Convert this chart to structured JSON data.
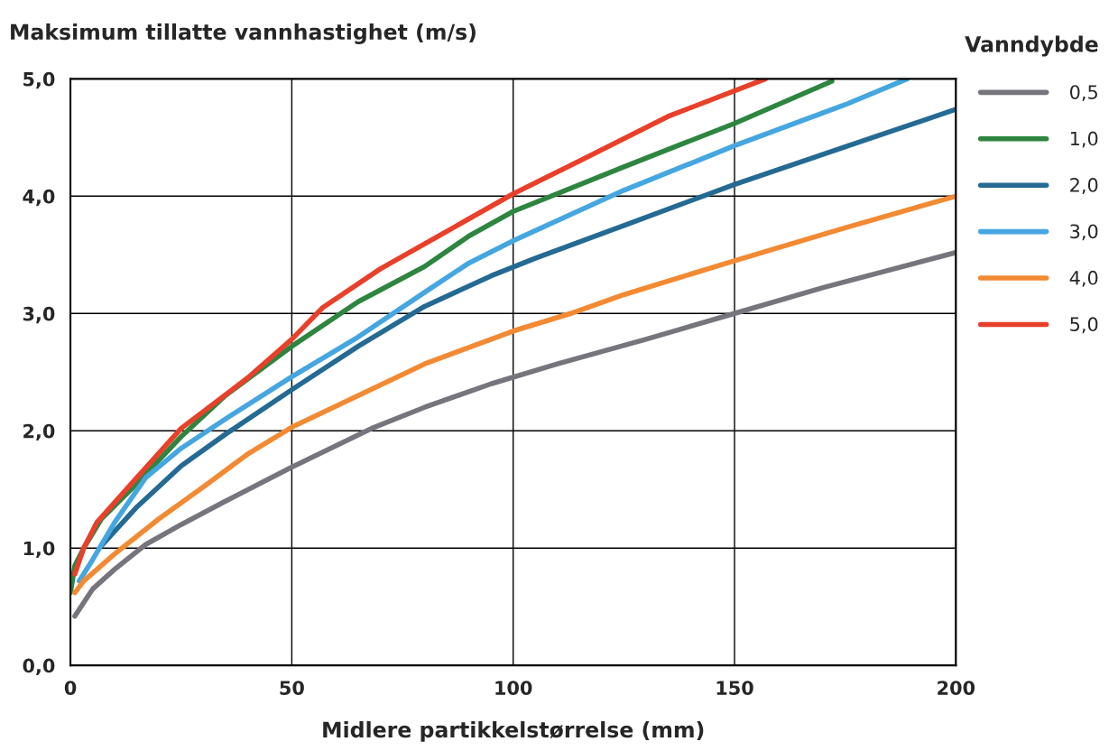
{
  "chart_data": {
    "type": "line",
    "ylabel": "Maksimum tillatte vannhastighet (m/s)",
    "xlabel": "Midlere partikkelstørrelse (mm)",
    "legend_title": "Vanndybde",
    "legend": "right",
    "grid": true,
    "marker": "none",
    "line_style": "solid",
    "xlim": [
      0,
      200
    ],
    "xticks": [
      0,
      50,
      100,
      150,
      200
    ],
    "ylim": [
      0,
      5
    ],
    "yticks": [
      {
        "value": 0,
        "label": "0,0"
      },
      {
        "value": 1,
        "label": "1,0"
      },
      {
        "value": 2,
        "label": "2,0"
      },
      {
        "value": 3,
        "label": "3,0"
      },
      {
        "value": 4,
        "label": "4,0"
      },
      {
        "value": 5,
        "label": "5,0"
      }
    ],
    "series": [
      {
        "name": "0,5",
        "color": "#76757d",
        "x": [
          1,
          5,
          10,
          17,
          25,
          35,
          50,
          68,
          80,
          95,
          110,
          130,
          150,
          170,
          200
        ],
        "values": [
          0.42,
          0.65,
          0.82,
          1.03,
          1.2,
          1.4,
          1.69,
          2.02,
          2.2,
          2.4,
          2.57,
          2.78,
          3.0,
          3.22,
          3.52
        ]
      },
      {
        "name": "1,0",
        "color": "#2e8540",
        "x": [
          0,
          1,
          3,
          7,
          15,
          25,
          35,
          50,
          65,
          80,
          90,
          100,
          125,
          150,
          172
        ],
        "values": [
          0.62,
          0.85,
          1.0,
          1.25,
          1.55,
          1.95,
          2.3,
          2.72,
          3.1,
          3.4,
          3.66,
          3.87,
          4.25,
          4.62,
          4.98
        ]
      },
      {
        "name": "2,0",
        "color": "#246a93",
        "x": [
          7,
          15,
          25,
          35,
          50,
          65,
          80,
          95,
          105,
          125,
          150,
          175,
          200
        ],
        "values": [
          1.02,
          1.35,
          1.7,
          1.97,
          2.35,
          2.72,
          3.06,
          3.32,
          3.47,
          3.75,
          4.1,
          4.42,
          4.74
        ]
      },
      {
        "name": "3,0",
        "color": "#45a6e0",
        "x": [
          2,
          5,
          10,
          17,
          25,
          35,
          50,
          65,
          80,
          90,
          100,
          125,
          150,
          175,
          189
        ],
        "values": [
          0.72,
          0.9,
          1.22,
          1.6,
          1.85,
          2.1,
          2.46,
          2.8,
          3.18,
          3.43,
          3.62,
          4.05,
          4.43,
          4.78,
          5.0
        ]
      },
      {
        "name": "4,0",
        "color": "#f28a33",
        "x": [
          1,
          3,
          10,
          20,
          30,
          40,
          50,
          65,
          80,
          100,
          113,
          125,
          150,
          175,
          200
        ],
        "values": [
          0.62,
          0.72,
          0.95,
          1.25,
          1.52,
          1.8,
          2.03,
          2.3,
          2.57,
          2.85,
          3.0,
          3.16,
          3.45,
          3.73,
          4.0
        ]
      },
      {
        "name": "5,0",
        "color": "#e8402a",
        "x": [
          1,
          3,
          6,
          15,
          25,
          40,
          50,
          57,
          70,
          85,
          100,
          115,
          135,
          157
        ],
        "values": [
          0.78,
          1.0,
          1.22,
          1.6,
          2.02,
          2.45,
          2.78,
          3.05,
          3.38,
          3.7,
          4.02,
          4.3,
          4.68,
          5.0
        ]
      }
    ]
  }
}
